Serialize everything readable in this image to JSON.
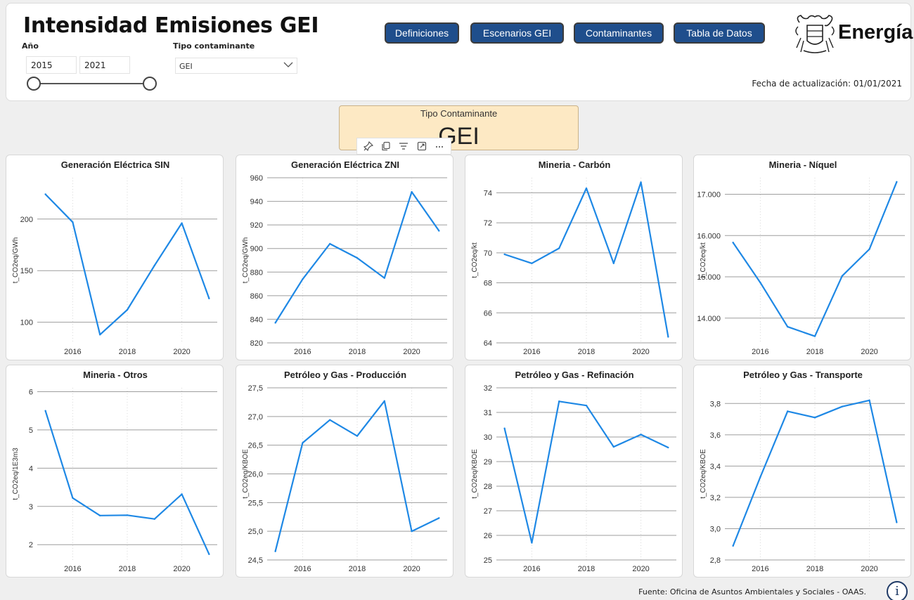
{
  "header": {
    "title": "Intensidad Emisiones GEI",
    "year_label": "Año",
    "year_from": "2015",
    "year_to": "2021",
    "type_label": "Tipo contaminante",
    "type_value": "GEI",
    "updated": "Fecha de actualización: 01/01/2021",
    "logo_text": "Energía"
  },
  "nav": [
    {
      "label": "Definiciones"
    },
    {
      "label": "Escenarios GEI"
    },
    {
      "label": "Contaminantes"
    },
    {
      "label": "Tabla de Datos"
    }
  ],
  "card": {
    "caption": "Tipo Contaminante",
    "value": "GEI"
  },
  "footer": {
    "source": "Fuente: Oficina de Asuntos Ambientales y Sociales - OAAS.",
    "info": "i"
  },
  "colors": {
    "line": "#1e88e5",
    "nav": "#1f4e8c",
    "card_bg": "#fde9c4"
  },
  "chart_data": [
    {
      "type": "line",
      "title": "Generación Eléctrica SIN",
      "ylabel": "t_CO2eq/GWh",
      "x": [
        2015,
        2016,
        2017,
        2018,
        2019,
        2020,
        2021
      ],
      "values": [
        224,
        197,
        88,
        112,
        155,
        196,
        123
      ],
      "ylim": [
        80,
        240
      ],
      "yticks": [
        100,
        150,
        200
      ],
      "ytick_labels": [
        "100",
        "150",
        "200"
      ],
      "xticks": [
        2016,
        2018,
        2020
      ],
      "xtick_labels": [
        "2016",
        "2018",
        "2020"
      ]
    },
    {
      "type": "line",
      "title": "Generación Eléctrica ZNI",
      "ylabel": "t_CO2eq/GWh",
      "x": [
        2015,
        2016,
        2017,
        2018,
        2019,
        2020,
        2021
      ],
      "values": [
        837,
        874,
        904,
        892,
        875,
        948,
        915
      ],
      "ylim": [
        820,
        960
      ],
      "yticks": [
        820,
        840,
        860,
        880,
        900,
        920,
        940,
        960
      ],
      "ytick_labels": [
        "820",
        "840",
        "860",
        "880",
        "900",
        "920",
        "940",
        "960"
      ],
      "xticks": [
        2016,
        2018,
        2020
      ],
      "xtick_labels": [
        "2016",
        "2018",
        "2020"
      ]
    },
    {
      "type": "line",
      "title": "Mineria - Carbón",
      "ylabel": "t_CO2eq/kt",
      "x": [
        2015,
        2016,
        2017,
        2018,
        2019,
        2020,
        2021
      ],
      "values": [
        69.9,
        69.3,
        70.3,
        74.3,
        69.3,
        74.7,
        64.4
      ],
      "ylim": [
        64,
        75
      ],
      "yticks": [
        64,
        66,
        68,
        70,
        72,
        74
      ],
      "ytick_labels": [
        "64",
        "66",
        "68",
        "70",
        "72",
        "74"
      ],
      "xticks": [
        2016,
        2018,
        2020
      ],
      "xtick_labels": [
        "2016",
        "2018",
        "2020"
      ]
    },
    {
      "type": "line",
      "title": "Mineria - Níquel",
      "ylabel": "t_CO2eq/kt",
      "x": [
        2015,
        2016,
        2017,
        2018,
        2019,
        2020,
        2021
      ],
      "values": [
        15830,
        14860,
        13790,
        13560,
        15020,
        15670,
        17300
      ],
      "ylim": [
        13400,
        17400
      ],
      "yticks": [
        14000,
        15000,
        16000,
        17000
      ],
      "ytick_labels": [
        "14.000",
        "15.000",
        "16.000",
        "17.000"
      ],
      "xticks": [
        2016,
        2018,
        2020
      ],
      "xtick_labels": [
        "2016",
        "2018",
        "2020"
      ]
    },
    {
      "type": "line",
      "title": "Mineria - Otros",
      "ylabel": "t_CO2eq/1E3m3",
      "x": [
        2015,
        2016,
        2017,
        2018,
        2019,
        2020,
        2021
      ],
      "values": [
        5.5,
        3.22,
        2.76,
        2.77,
        2.67,
        3.32,
        1.75
      ],
      "ylim": [
        1.6,
        6.1
      ],
      "yticks": [
        2,
        3,
        4,
        5,
        6
      ],
      "ytick_labels": [
        "2",
        "3",
        "4",
        "5",
        "6"
      ],
      "xticks": [
        2016,
        2018,
        2020
      ],
      "xtick_labels": [
        "2016",
        "2018",
        "2020"
      ]
    },
    {
      "type": "line",
      "title": "Petróleo y Gas - Producción",
      "ylabel": "t_CO2eq/KBOE",
      "x": [
        2015,
        2016,
        2017,
        2018,
        2019,
        2020,
        2021
      ],
      "values": [
        24.65,
        26.54,
        26.94,
        26.66,
        27.27,
        25.0,
        25.23
      ],
      "ylim": [
        24.5,
        27.5
      ],
      "yticks": [
        24.5,
        25.0,
        25.5,
        26.0,
        26.5,
        27.0,
        27.5
      ],
      "ytick_labels": [
        "24,5",
        "25,0",
        "25,5",
        "26,0",
        "26,5",
        "27,0",
        "27,5"
      ],
      "xticks": [
        2016,
        2018,
        2020
      ],
      "xtick_labels": [
        "2016",
        "2018",
        "2020"
      ]
    },
    {
      "type": "line",
      "title": "Petróleo y Gas - Refinación",
      "ylabel": "t_CO2eq/KBOE",
      "x": [
        2015,
        2016,
        2017,
        2018,
        2019,
        2020,
        2021
      ],
      "values": [
        30.35,
        25.7,
        31.45,
        31.28,
        29.6,
        30.1,
        29.57
      ],
      "ylim": [
        25,
        32
      ],
      "yticks": [
        25,
        26,
        27,
        28,
        29,
        30,
        31,
        32
      ],
      "ytick_labels": [
        "25",
        "26",
        "27",
        "28",
        "29",
        "30",
        "31",
        "32"
      ],
      "xticks": [
        2016,
        2018,
        2020
      ],
      "xtick_labels": [
        "2016",
        "2018",
        "2020"
      ]
    },
    {
      "type": "line",
      "title": "Petróleo y Gas - Transporte",
      "ylabel": "t_CO2eq/KBOE",
      "x": [
        2015,
        2016,
        2017,
        2018,
        2019,
        2020,
        2021
      ],
      "values": [
        2.89,
        3.33,
        3.75,
        3.71,
        3.78,
        3.82,
        3.04
      ],
      "ylim": [
        2.8,
        3.9
      ],
      "yticks": [
        2.8,
        3.0,
        3.2,
        3.4,
        3.6,
        3.8
      ],
      "ytick_labels": [
        "2,8",
        "3,0",
        "3,2",
        "3,4",
        "3,6",
        "3,8"
      ],
      "xticks": [
        2016,
        2018,
        2020
      ],
      "xtick_labels": [
        "2016",
        "2018",
        "2020"
      ]
    }
  ]
}
